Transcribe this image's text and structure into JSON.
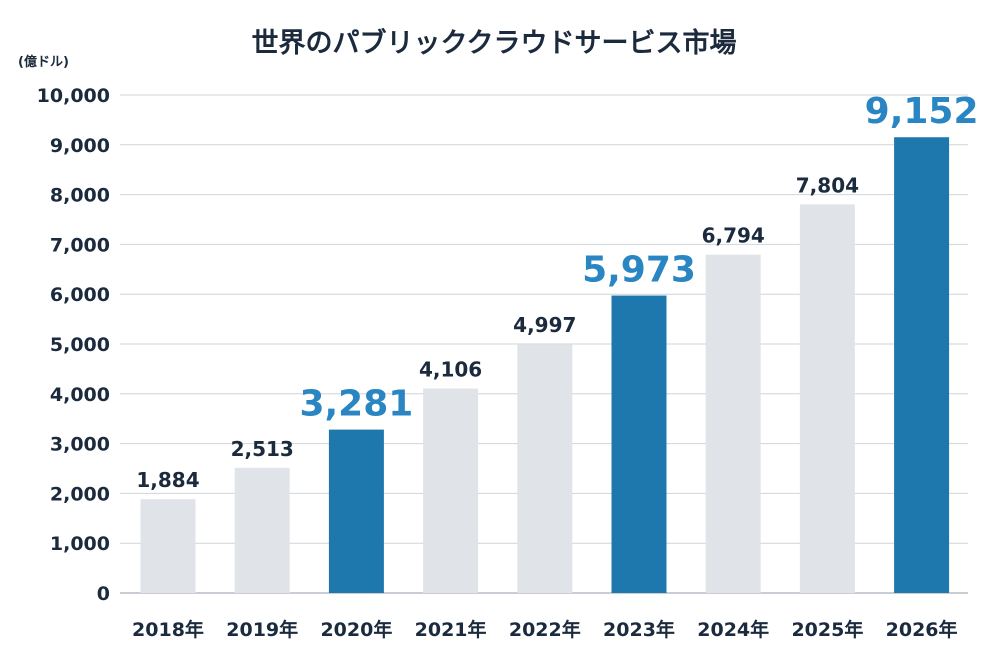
{
  "chart_data": {
    "type": "bar",
    "title": "世界のパブリッククラウドサービス市場",
    "ylabel": "(億ドル)",
    "xlabel": "",
    "categories": [
      "2018年",
      "2019年",
      "2020年",
      "2021年",
      "2022年",
      "2023年",
      "2024年",
      "2025年",
      "2026年"
    ],
    "values": [
      1884,
      2513,
      3281,
      4106,
      4997,
      5973,
      6794,
      7804,
      9152
    ],
    "value_labels": [
      "1,884",
      "2,513",
      "3,281",
      "4,106",
      "4,997",
      "5,973",
      "6,794",
      "7,804",
      "9,152"
    ],
    "highlighted": [
      false,
      false,
      true,
      false,
      false,
      true,
      false,
      false,
      true
    ],
    "ylim": [
      0,
      10000
    ],
    "yticks": [
      0,
      1000,
      2000,
      3000,
      4000,
      5000,
      6000,
      7000,
      8000,
      9000,
      10000
    ],
    "ytick_labels": [
      "0",
      "1,000",
      "2,000",
      "3,000",
      "4,000",
      "5,000",
      "6,000",
      "7,000",
      "8,000",
      "9,000",
      "10,000"
    ],
    "grid": true,
    "colors": {
      "bar": "#e0e3e8",
      "highlight": "#1f78ad",
      "highlight_label": "#2a86c2",
      "grid": "#cfd4da"
    }
  }
}
